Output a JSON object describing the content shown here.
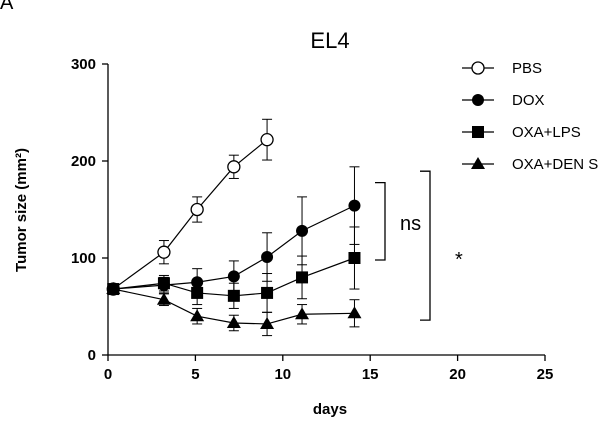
{
  "panel_label": "A",
  "chart_data": {
    "type": "line",
    "title": "EL4",
    "xlabel": "days",
    "ylabel": "Tumor size (mm²)",
    "xlim": [
      0,
      25
    ],
    "ylim": [
      0,
      300
    ],
    "xticks": [
      0,
      5,
      10,
      15,
      20,
      25
    ],
    "yticks": [
      0,
      100,
      200,
      300
    ],
    "grid": false,
    "legend_position": "top-right",
    "series": [
      {
        "name": "PBS",
        "marker": "circle-open",
        "x": [
          0.3,
          3.2,
          5.1,
          7.2,
          9.1
        ],
        "y": [
          68,
          106,
          150,
          194,
          222
        ],
        "err": [
          5,
          12,
          13,
          12,
          21
        ]
      },
      {
        "name": "DOX",
        "marker": "circle-filled",
        "x": [
          0.3,
          3.2,
          5.1,
          7.2,
          9.1,
          11.1,
          14.1
        ],
        "y": [
          68,
          72,
          75,
          81,
          101,
          128,
          154
        ],
        "err": [
          5,
          8,
          14,
          16,
          25,
          35,
          40
        ]
      },
      {
        "name": "OXA+LPS",
        "marker": "square-filled",
        "x": [
          0.3,
          3.2,
          5.1,
          7.2,
          9.1,
          11.1,
          14.1
        ],
        "y": [
          68,
          74,
          64,
          61,
          64,
          80,
          100
        ],
        "err": [
          5,
          8,
          12,
          13,
          20,
          22,
          32
        ]
      },
      {
        "name": "OXA+DEN S",
        "marker": "triangle-filled",
        "x": [
          0.3,
          3.2,
          5.1,
          7.2,
          9.1,
          11.1,
          14.1
        ],
        "y": [
          68,
          57,
          40,
          33,
          32,
          42,
          43
        ],
        "err": [
          5,
          6,
          8,
          8,
          12,
          10,
          14
        ]
      }
    ],
    "annotations": [
      {
        "text": "ns",
        "bracket_y": [
          154,
          100
        ]
      },
      {
        "text": "*",
        "bracket_y": [
          173,
          38
        ]
      }
    ]
  }
}
